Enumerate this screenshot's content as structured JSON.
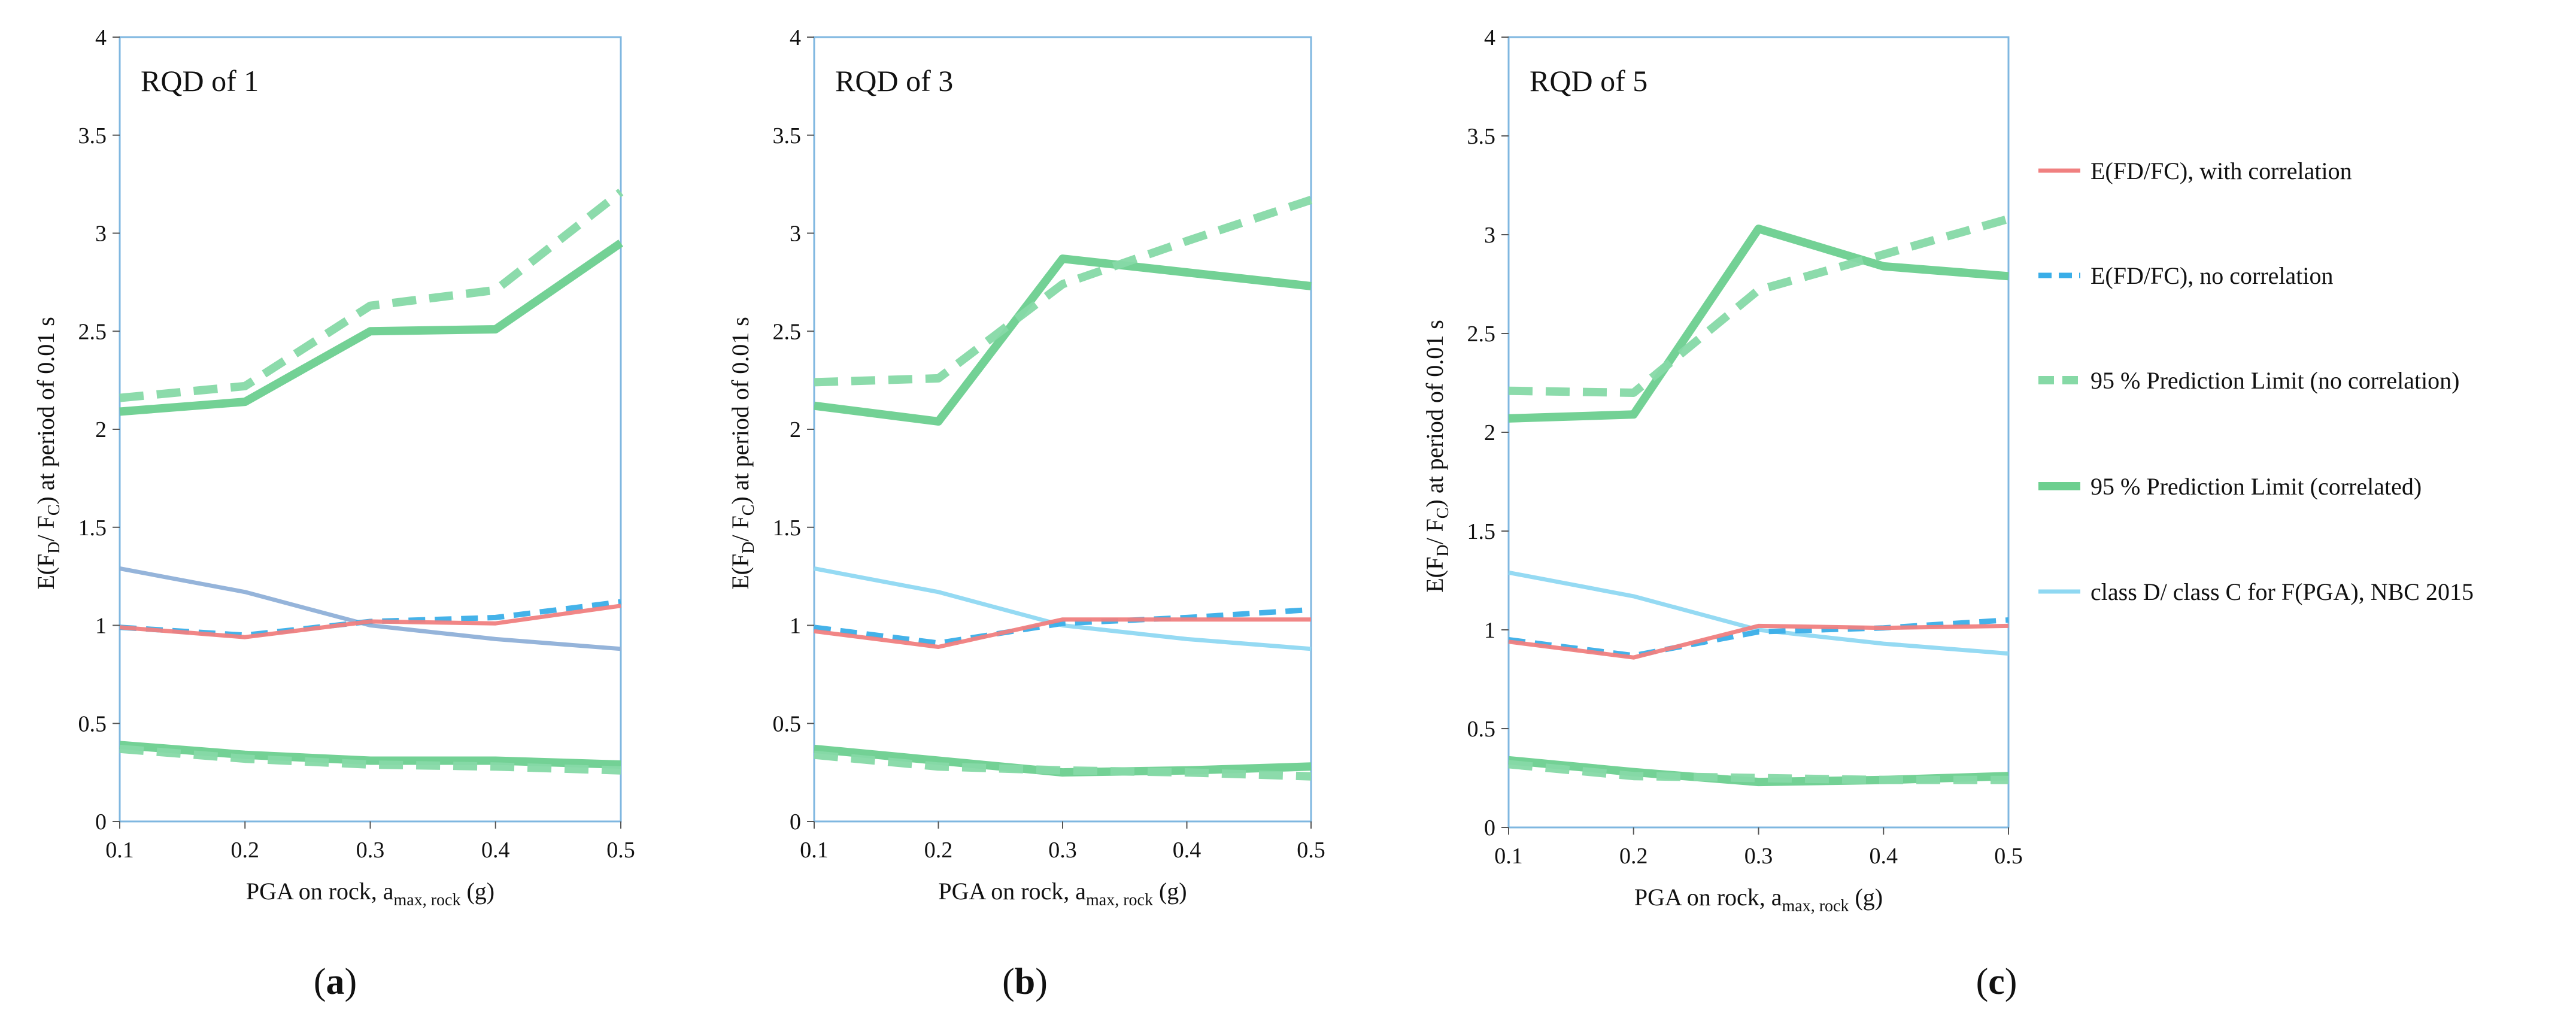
{
  "figure": {
    "panel_letters": [
      "(a)",
      "(b)",
      "(c)"
    ],
    "legend": [
      {
        "label": "E(FD/FC), with correlation",
        "color": "#f08080",
        "style": "solid-thin"
      },
      {
        "label": "E(FD/FC), no correlation",
        "color": "#3aaee8",
        "style": "dashed-thin"
      },
      {
        "label": "95 % Prediction Limit (no correlation)",
        "color": "#86d9a6",
        "style": "dashed-thick"
      },
      {
        "label": "95 % Prediction Limit (correlated)",
        "color": "#6ccf8f",
        "style": "solid-thick"
      },
      {
        "label": "class D/ class C for F(PGA), NBC 2015",
        "color": "#8fd8f2",
        "style": "solid-thin"
      }
    ]
  },
  "chart_data": [
    {
      "type": "line",
      "title": "RQD of 1",
      "xlabel": "PGA on rock, a",
      "xlabel_sub": "max, rock",
      "xlabel_unit": " (g)",
      "ylabel_pre": "E(F",
      "ylabel_sub1": "D",
      "ylabel_mid": "/ F",
      "ylabel_sub2": "C",
      "ylabel_post": ") at period of 0.01 s",
      "x_ticks": [
        "0.1",
        "0.2",
        "0.3",
        "0.4",
        "0.5"
      ],
      "y_ticks": [
        "0",
        "0.5",
        "1",
        "1.5",
        "2",
        "2.5",
        "3",
        "3.5",
        "4"
      ],
      "xlim": [
        0.1,
        0.5
      ],
      "ylim": [
        0,
        4
      ],
      "grid": false,
      "x": [
        0.1,
        0.2,
        0.3,
        0.4,
        0.5
      ],
      "series": [
        {
          "name": "E(FD/FC), with correlation",
          "values": [
            0.99,
            0.94,
            1.02,
            1.01,
            1.1
          ],
          "color": "#f08080"
        },
        {
          "name": "E(FD/FC), no correlation",
          "values": [
            0.99,
            0.95,
            1.02,
            1.04,
            1.12
          ],
          "color": "#3aaee8"
        },
        {
          "name": "95 % Prediction Limit (no correlation)",
          "values": [
            2.16,
            2.22,
            2.63,
            2.71,
            3.21
          ],
          "color": "#86d9a6"
        },
        {
          "name": "95 % Prediction Limit (correlated)",
          "values": [
            2.09,
            2.14,
            2.5,
            2.51,
            2.95
          ],
          "color": "#6ccf8f"
        },
        {
          "name": "class D/ class C for F(PGA), NBC 2015",
          "values": [
            1.29,
            1.17,
            1.0,
            0.93,
            0.88
          ],
          "color": "#8fb0d8"
        },
        {
          "name": "95 % Prediction Limit (no correlation)",
          "values": [
            0.37,
            0.32,
            0.29,
            0.28,
            0.26
          ],
          "color": "#86d9a6"
        },
        {
          "name": "95 % Prediction Limit (correlated)",
          "values": [
            0.39,
            0.34,
            0.31,
            0.31,
            0.29
          ],
          "color": "#6ccf8f"
        }
      ]
    },
    {
      "type": "line",
      "title": "RQD of 3",
      "xlabel": "PGA on rock, a",
      "xlabel_sub": "max, rock",
      "xlabel_unit": " (g)",
      "ylabel_pre": "E(F",
      "ylabel_sub1": "D",
      "ylabel_mid": "/ F",
      "ylabel_sub2": "C",
      "ylabel_post": ") at period of 0.01 s",
      "x_ticks": [
        "0.1",
        "0.2",
        "0.3",
        "0.4",
        "0.5"
      ],
      "y_ticks": [
        "0",
        "0.5",
        "1",
        "1.5",
        "2",
        "2.5",
        "3",
        "3.5",
        "4"
      ],
      "xlim": [
        0.1,
        0.5
      ],
      "ylim": [
        0,
        4
      ],
      "grid": false,
      "x": [
        0.1,
        0.2,
        0.3,
        0.4,
        0.5
      ],
      "series": [
        {
          "name": "E(FD/FC), with correlation",
          "values": [
            0.97,
            0.89,
            1.03,
            1.03,
            1.03
          ],
          "color": "#f08080"
        },
        {
          "name": "E(FD/FC), no correlation",
          "values": [
            0.99,
            0.91,
            1.01,
            1.04,
            1.08
          ],
          "color": "#3aaee8"
        },
        {
          "name": "95 % Prediction Limit (no correlation)",
          "values": [
            2.24,
            2.26,
            2.74,
            2.96,
            3.17
          ],
          "color": "#86d9a6"
        },
        {
          "name": "95 % Prediction Limit (correlated)",
          "values": [
            2.12,
            2.04,
            2.87,
            2.8,
            2.73
          ],
          "color": "#6ccf8f"
        },
        {
          "name": "class D/ class C for F(PGA), NBC 2015",
          "values": [
            1.29,
            1.17,
            1.0,
            0.93,
            0.88
          ],
          "color": "#8fd8f2"
        },
        {
          "name": "95 % Prediction Limit (no correlation)",
          "values": [
            0.34,
            0.28,
            0.26,
            0.25,
            0.23
          ],
          "color": "#86d9a6"
        },
        {
          "name": "95 % Prediction Limit (correlated)",
          "values": [
            0.37,
            0.31,
            0.25,
            0.26,
            0.28
          ],
          "color": "#6ccf8f"
        }
      ]
    },
    {
      "type": "line",
      "title": "RQD of 5",
      "xlabel": "PGA on rock, a",
      "xlabel_sub": "max, rock",
      "xlabel_unit": " (g)",
      "ylabel_pre": "E(F",
      "ylabel_sub1": "D",
      "ylabel_mid": "/ F",
      "ylabel_sub2": "C",
      "ylabel_post": ") at period of 0.01 s",
      "x_ticks": [
        "0.1",
        "0.2",
        "0.3",
        "0.4",
        "0.5"
      ],
      "y_ticks": [
        "0",
        "0.5",
        "1",
        "1.5",
        "2",
        "2.5",
        "3",
        "3.5",
        "4"
      ],
      "xlim": [
        0.1,
        0.5
      ],
      "ylim": [
        0,
        4
      ],
      "grid": false,
      "x": [
        0.1,
        0.2,
        0.3,
        0.4,
        0.5
      ],
      "series": [
        {
          "name": "E(FD/FC), with correlation",
          "values": [
            0.94,
            0.86,
            1.02,
            1.01,
            1.02
          ],
          "color": "#f08080"
        },
        {
          "name": "E(FD/FC), no correlation",
          "values": [
            0.95,
            0.87,
            0.99,
            1.01,
            1.05
          ],
          "color": "#3aaee8"
        },
        {
          "name": "95 % Prediction Limit (no correlation)",
          "values": [
            2.21,
            2.2,
            2.72,
            2.9,
            3.08
          ],
          "color": "#86d9a6"
        },
        {
          "name": "95 % Prediction Limit (correlated)",
          "values": [
            2.07,
            2.09,
            3.03,
            2.84,
            2.79
          ],
          "color": "#6ccf8f"
        },
        {
          "name": "class D/ class C for F(PGA), NBC 2015",
          "values": [
            1.29,
            1.17,
            1.0,
            0.93,
            0.88
          ],
          "color": "#8fd8f2"
        },
        {
          "name": "95 % Prediction Limit (no correlation)",
          "values": [
            0.32,
            0.26,
            0.25,
            0.24,
            0.24
          ],
          "color": "#86d9a6"
        },
        {
          "name": "95 % Prediction Limit (correlated)",
          "values": [
            0.34,
            0.28,
            0.23,
            0.24,
            0.26
          ],
          "color": "#6ccf8f"
        }
      ]
    }
  ]
}
